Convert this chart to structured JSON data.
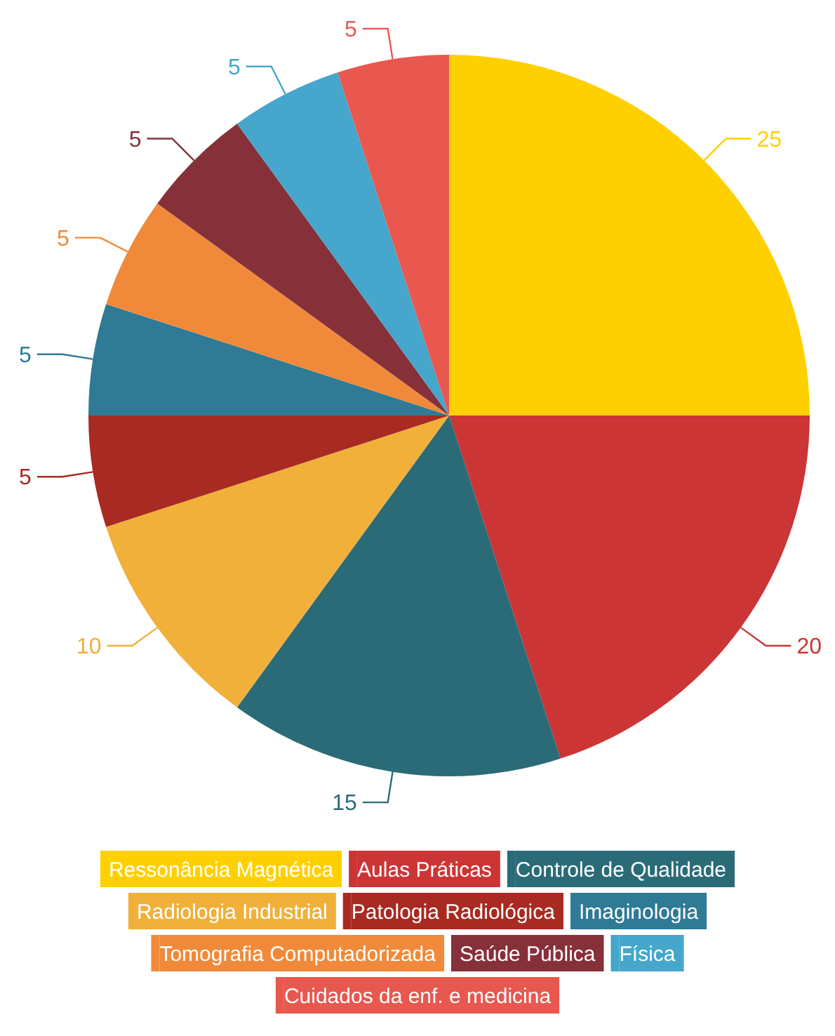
{
  "chart_data": {
    "type": "pie",
    "categories": [
      "Ressonância Magnética",
      "Aulas Práticas",
      "Controle de Qualidade",
      "Radiologia Industrial",
      "Patologia Radiológica",
      "Imaginologia",
      "Tomografia Computadorizada",
      "Saúde Pública",
      "Física",
      "Cuidados da enf. e medicina"
    ],
    "values": [
      25,
      20,
      15,
      10,
      5,
      5,
      5,
      5,
      5,
      5
    ],
    "colors": [
      "#ffd000",
      "#cc3535",
      "#2b6b78",
      "#f0b03a",
      "#a82a22",
      "#2f7a95",
      "#f08a3a",
      "#86303a",
      "#46a6cb",
      "#e8584f"
    ],
    "data_labels": true,
    "legend": "bottom"
  }
}
